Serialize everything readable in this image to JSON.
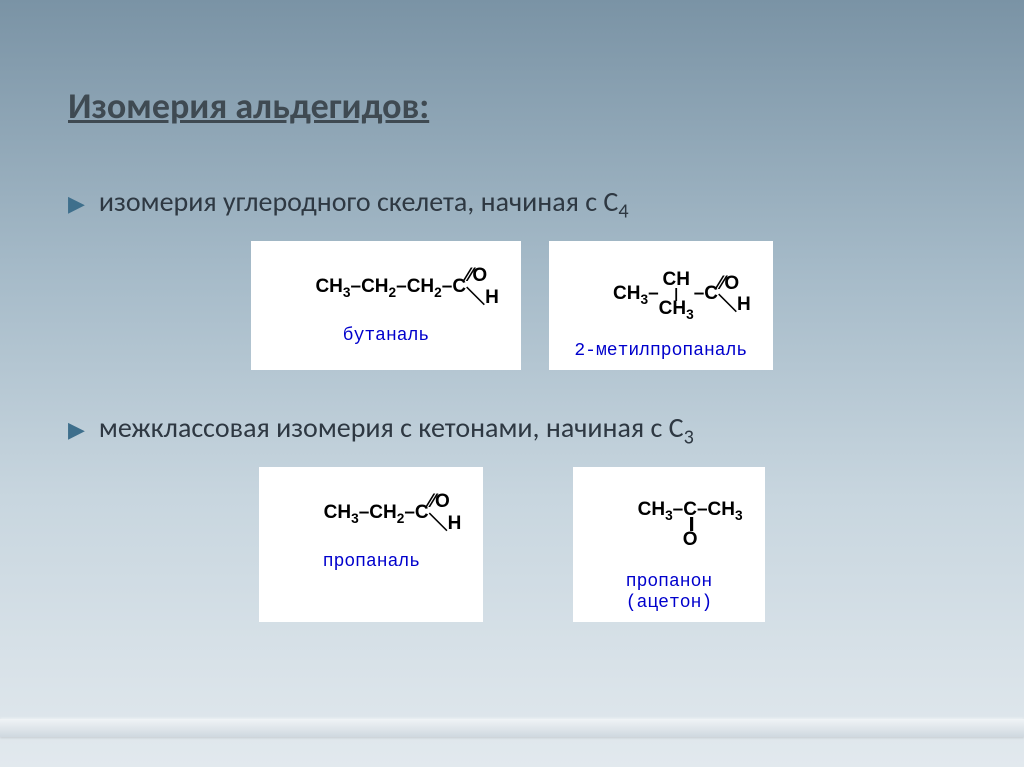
{
  "title": "Изомерия  альдегидов:",
  "bullet1_prefix": "изомерия углеродного скелета, начиная с С",
  "bullet1_subscript": "4",
  "bullet2_prefix": "межклассовая изомерия с кетонами, начиная с С",
  "bullet2_subscript": "3",
  "formulas": {
    "butanal": {
      "chain": "CH₃–CH₂–CH₂–C",
      "top": "⁄⁄O",
      "bottom": "⁴H",
      "name": "бутаналь"
    },
    "methylpropanal": {
      "left": "CH₃–",
      "branch_top": "CH",
      "branch_ch3": "CH₃",
      "right": "–C",
      "top": "⁄⁄O",
      "bottom": "⁴H",
      "name": "2-метилпропаналь"
    },
    "propanal": {
      "chain": "CH₃–CH₂–C",
      "top": "⁄⁄O",
      "bottom": "⁴H",
      "name": "пропаналь"
    },
    "propanone": {
      "row": "CH₃–C–CH₃",
      "name_line1": "пропанон",
      "name_line2": "(ацетон)"
    }
  },
  "colors": {
    "title": "#3f4a52",
    "bullet_text": "#2e3842",
    "bullet_marker": "#3e6f8c",
    "formula_name": "#0000cc",
    "formula_bg": "#ffffff",
    "chem_text": "#000000"
  }
}
